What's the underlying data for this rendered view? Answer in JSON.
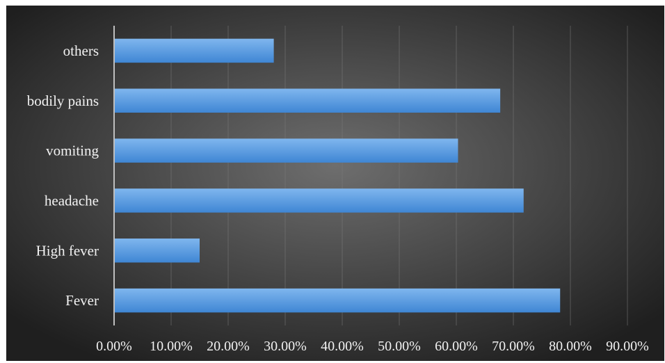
{
  "chart_data": {
    "type": "bar",
    "orientation": "horizontal",
    "categories": [
      "Fever",
      "High fever",
      "headache",
      "vomiting",
      "bodily pains",
      "others"
    ],
    "values": [
      78.2,
      15.0,
      71.8,
      60.3,
      67.7,
      28.0
    ],
    "xlim": [
      0,
      90
    ],
    "tick_labels": [
      "0.00%",
      "10.00%",
      "20.00%",
      "30.00%",
      "40.00%",
      "50.00%",
      "60.00%",
      "70.00%",
      "80.00%",
      "90.00%"
    ],
    "grid": true,
    "legend": "none",
    "colors": {
      "background_center": "#6e6e6e",
      "background_edge": "#1f1f1f",
      "bar_top": "#7fb6ee",
      "bar_bottom": "#3f86d4",
      "text": "#f2f2f2"
    }
  }
}
